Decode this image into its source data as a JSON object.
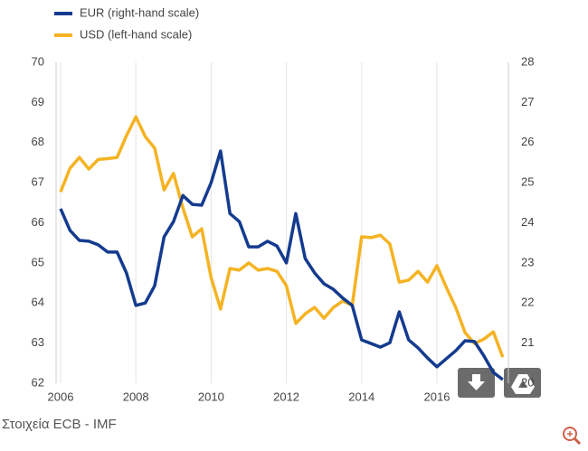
{
  "chart_data": {
    "type": "line",
    "source": "Στοιχεία ECB - IMF",
    "x": [
      2006,
      2006.25,
      2006.5,
      2006.75,
      2007,
      2007.25,
      2007.5,
      2007.75,
      2008,
      2008.25,
      2008.5,
      2008.75,
      2009,
      2009.25,
      2009.5,
      2009.75,
      2010,
      2010.25,
      2010.5,
      2010.75,
      2011,
      2011.25,
      2011.5,
      2011.75,
      2012,
      2012.25,
      2012.5,
      2012.75,
      2013,
      2013.25,
      2013.5,
      2013.75,
      2014,
      2014.25,
      2014.5,
      2014.75,
      2015,
      2015.25,
      2015.5,
      2015.75,
      2016,
      2016.25,
      2016.5,
      2016.75,
      2017,
      2017.25,
      2017.5,
      2017.75
    ],
    "series": [
      {
        "name": "EUR (right-hand scale)",
        "color": "#143b8f",
        "axis": "y2",
        "values": [
          24.35,
          23.81,
          23.56,
          23.54,
          23.45,
          23.27,
          23.27,
          22.75,
          21.94,
          22.0,
          22.43,
          23.65,
          24.03,
          24.68,
          24.46,
          24.44,
          25.0,
          25.79,
          24.23,
          24.03,
          23.4,
          23.4,
          23.54,
          23.42,
          23.0,
          24.23,
          23.11,
          22.75,
          22.48,
          22.34,
          22.12,
          21.94,
          21.08,
          20.99,
          20.9,
          21.01,
          21.78,
          21.08,
          20.88,
          20.63,
          20.41,
          20.61,
          20.81,
          21.06,
          21.04,
          20.68,
          20.27,
          20.09
        ]
      },
      {
        "name": "USD (left-hand scale)",
        "color": "#f5b323",
        "values": [
          66.77,
          67.36,
          67.63,
          67.34,
          67.58,
          67.6,
          67.63,
          68.17,
          68.64,
          68.15,
          67.86,
          66.82,
          67.23,
          66.37,
          65.65,
          65.85,
          64.63,
          63.85,
          64.86,
          64.82,
          65.0,
          64.82,
          64.86,
          64.79,
          64.43,
          63.49,
          63.73,
          63.89,
          63.62,
          63.89,
          64.05,
          63.94,
          65.65,
          65.63,
          65.69,
          65.47,
          64.52,
          64.57,
          64.79,
          64.52,
          64.93,
          64.39,
          63.89,
          63.26,
          62.99,
          63.1,
          63.28,
          62.65
        ]
      }
    ],
    "xlim": [
      2006,
      2017.9
    ],
    "xticks": [
      2006,
      2008,
      2010,
      2012,
      2014,
      2016
    ],
    "ylim": [
      62,
      70
    ],
    "yticks": [
      62,
      63,
      64,
      65,
      66,
      67,
      68,
      69,
      70
    ],
    "y2lim": [
      20,
      28
    ],
    "y2ticks": [
      20,
      21,
      22,
      23,
      24,
      25,
      26,
      27,
      28
    ],
    "grid": true
  }
}
